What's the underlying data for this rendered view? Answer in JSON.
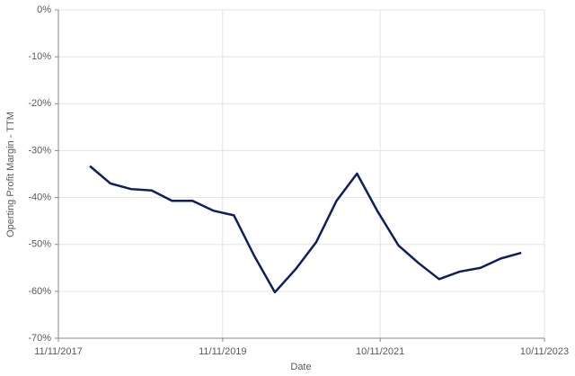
{
  "chart_data": {
    "type": "line",
    "x_label": "Date",
    "y_label": "Operting Profit Margin - TTM",
    "x": [
      "2018-03-31",
      "2018-06-30",
      "2018-09-30",
      "2018-12-31",
      "2019-03-31",
      "2019-06-30",
      "2019-09-30",
      "2019-12-31",
      "2020-03-31",
      "2020-06-30",
      "2020-09-30",
      "2020-12-31",
      "2021-03-31",
      "2021-06-30",
      "2021-09-30",
      "2021-12-31",
      "2022-03-31",
      "2022-06-30",
      "2022-09-30",
      "2022-12-31",
      "2023-03-31",
      "2023-06-30"
    ],
    "series": [
      {
        "name": "Operting Profit Margin - TTM",
        "color": "#0e1f5b",
        "values": [
          -33.3,
          -37,
          -38.2,
          -38.5,
          -40.7,
          -40.7,
          -42.8,
          -43.8,
          -52.5,
          -60.2,
          -55.3,
          -49.5,
          -40.7,
          -34.9,
          -43,
          -50.2,
          -54,
          -57.4,
          -55.8,
          -55,
          -53,
          -51.8
        ]
      }
    ],
    "xlim": [
      "2017-11-11",
      "2023-10-11"
    ],
    "xticks": [
      {
        "value": "2017-11-11",
        "label": "11/11/2017"
      },
      {
        "value": "2019-11-11",
        "label": "11/11/2019"
      },
      {
        "value": "2021-10-11",
        "label": "10/11/2021"
      },
      {
        "value": "2023-10-11",
        "label": "10/11/2023"
      }
    ],
    "ylim": [
      -70,
      0
    ],
    "yticks": [
      {
        "value": -70,
        "label": "-70%"
      },
      {
        "value": -60,
        "label": "-60%"
      },
      {
        "value": -50,
        "label": "-50%"
      },
      {
        "value": -40,
        "label": "-40%"
      },
      {
        "value": -30,
        "label": "-30%"
      },
      {
        "value": -20,
        "label": "-20%"
      },
      {
        "value": -10,
        "label": "-10%"
      },
      {
        "value": 0,
        "label": "0%"
      }
    ],
    "grid": true
  }
}
